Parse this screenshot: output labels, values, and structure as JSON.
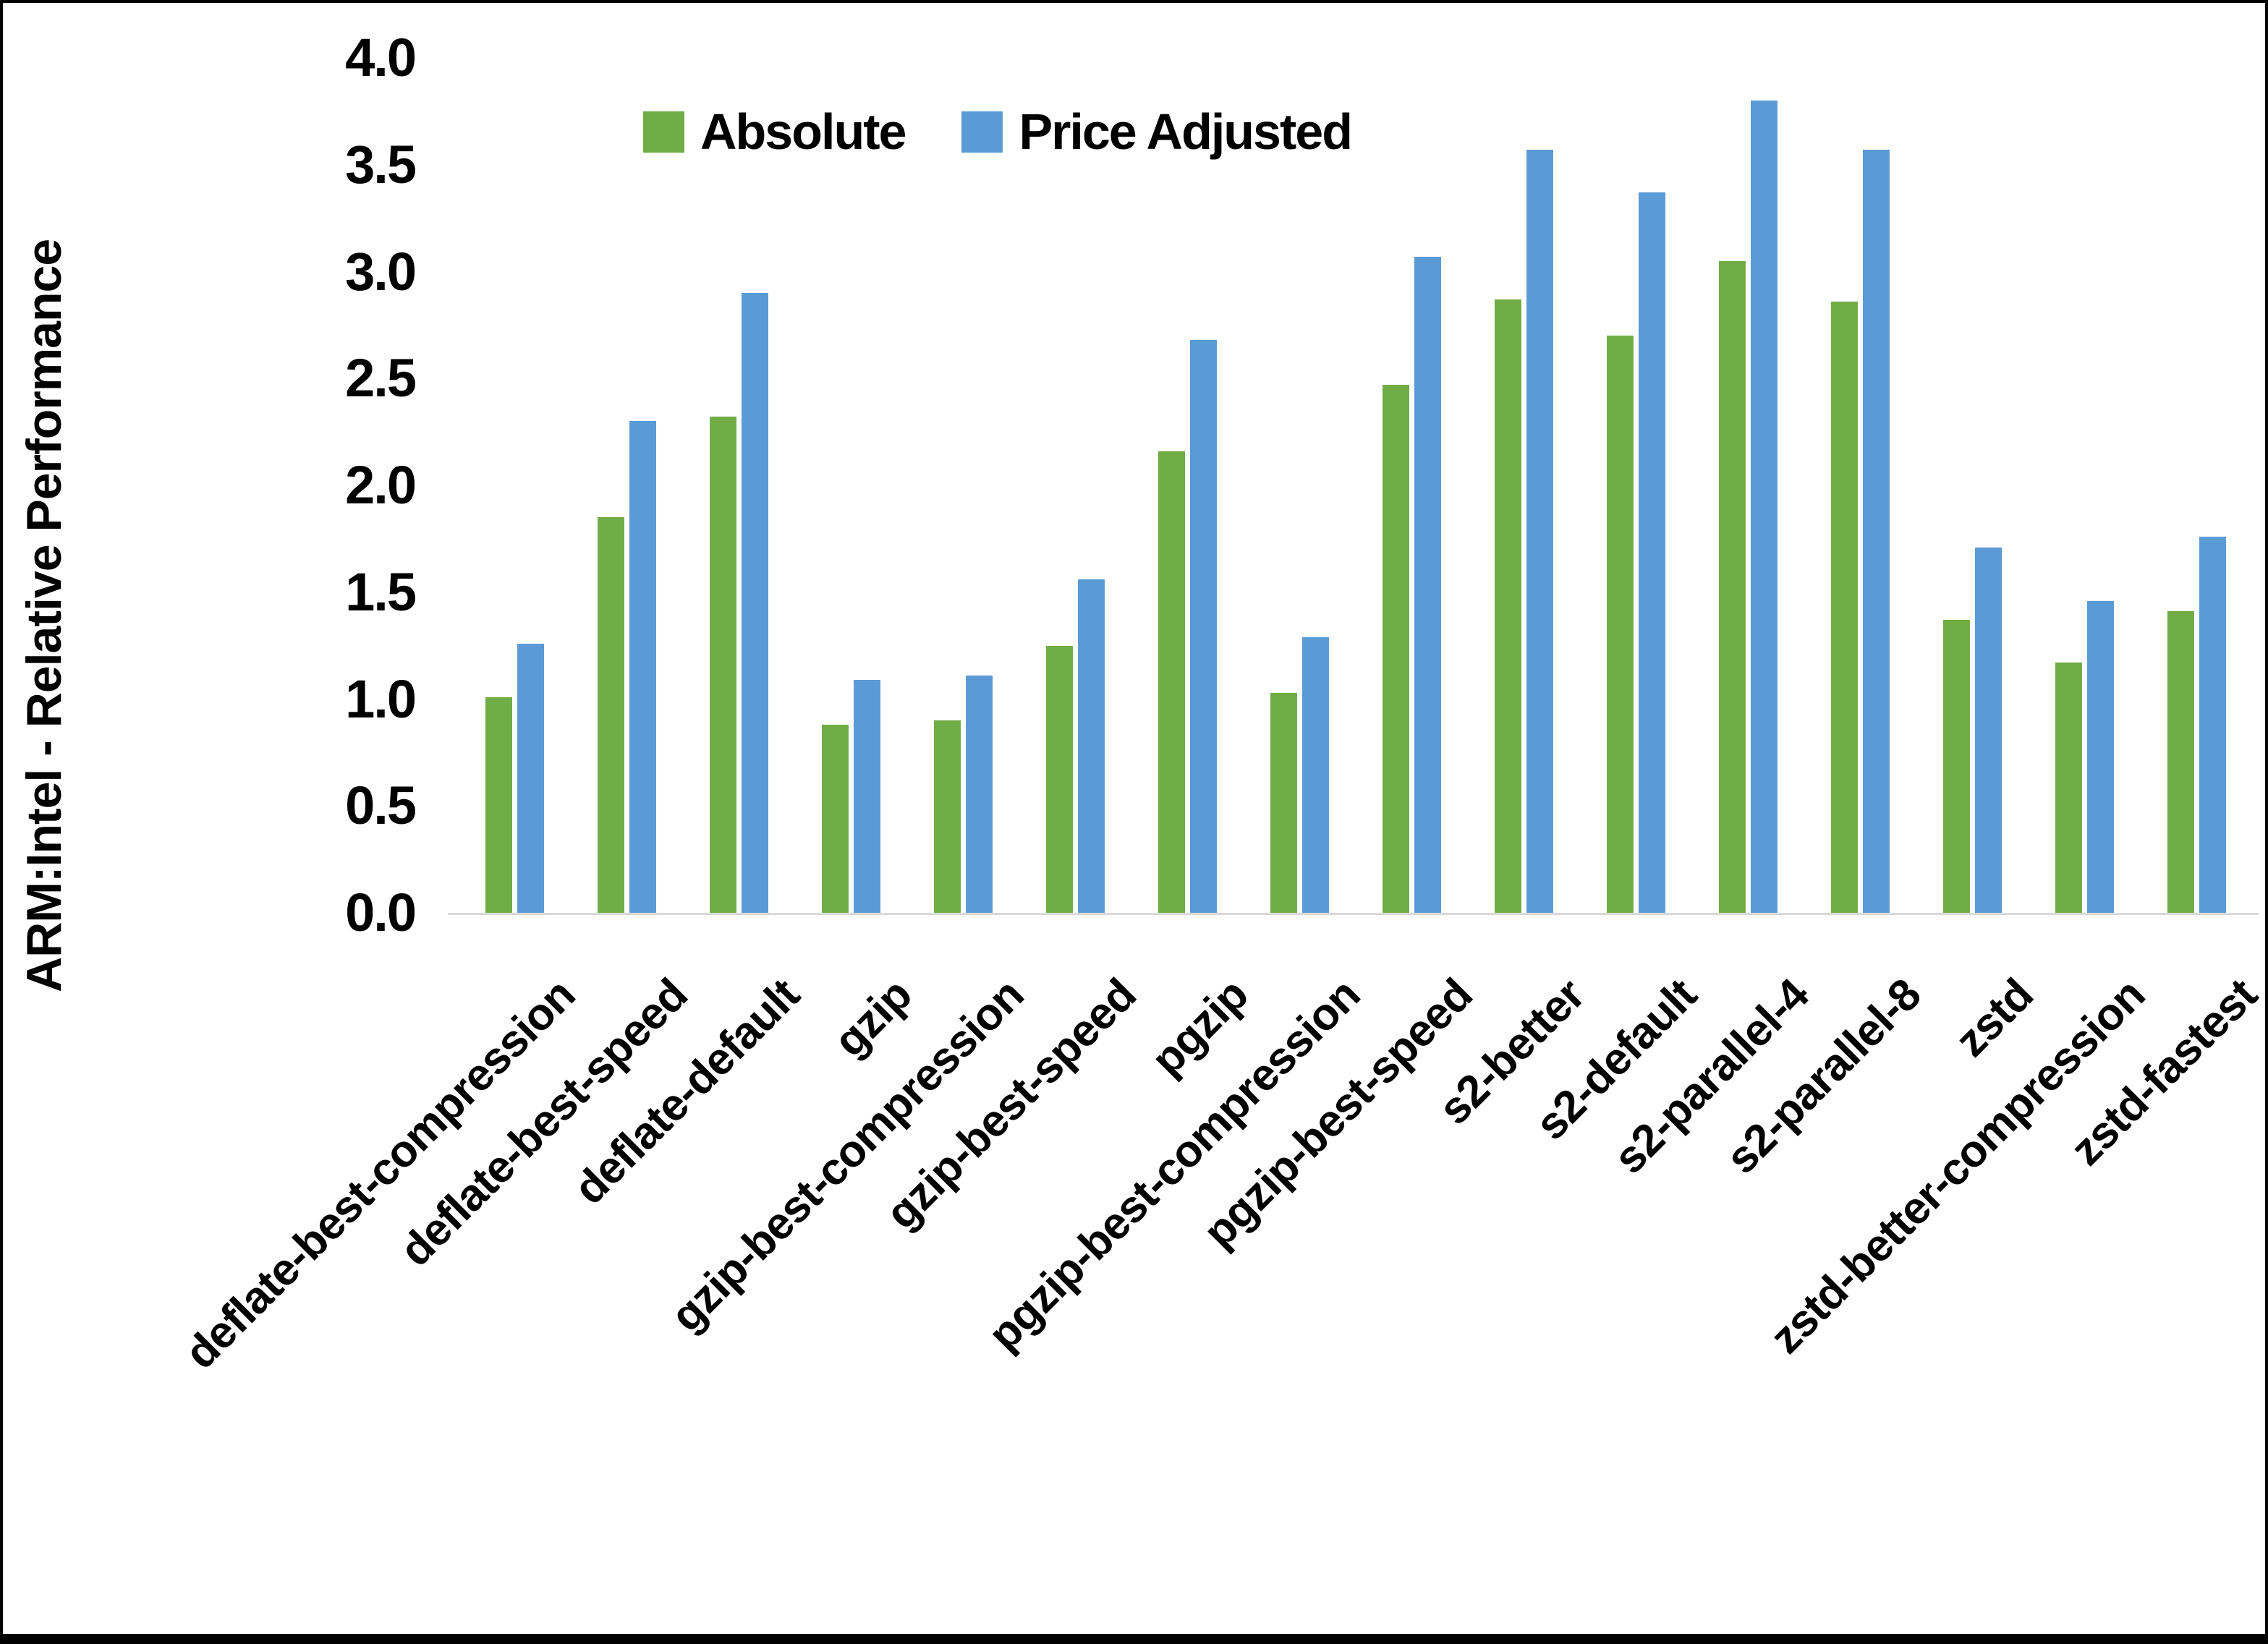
{
  "chart_data": {
    "type": "bar",
    "title": "",
    "xlabel": "",
    "ylabel": "ARM:Intel - Relative Performance",
    "ylim": [
      0.0,
      4.0
    ],
    "ytick_step": 0.5,
    "yticks": [
      "0.0",
      "0.5",
      "1.0",
      "1.5",
      "2.0",
      "2.5",
      "3.0",
      "3.5",
      "4.0"
    ],
    "grid": false,
    "legend_position": "top-center",
    "categories": [
      "deflate-best-compression",
      "deflate-best-speed",
      "deflate-default",
      "gzip",
      "gzip-best-compression",
      "gzip-best-speed",
      "pgzip",
      "pgzip-best-compression",
      "pgzip-best-speed",
      "s2-better",
      "s2-default",
      "s2-parallel-4",
      "s2-parallel-8",
      "zstd",
      "zstd-better-compression",
      "zstd-fastest"
    ],
    "series": [
      {
        "name": "Absolute",
        "color": "#70AD47",
        "values": [
          1.01,
          1.85,
          2.32,
          0.88,
          0.9,
          1.25,
          2.16,
          1.03,
          2.47,
          2.87,
          2.7,
          3.05,
          2.86,
          1.37,
          1.17,
          1.41
        ]
      },
      {
        "name": "Price Adjusted",
        "color": "#5B9BD5",
        "values": [
          1.26,
          2.3,
          2.9,
          1.09,
          1.11,
          1.56,
          2.68,
          1.29,
          3.07,
          3.57,
          3.37,
          3.8,
          3.57,
          1.71,
          1.46,
          1.76
        ]
      }
    ],
    "axis_line_color": "#D9D9D9",
    "text_color": "#000000",
    "background_color": "#FFFFFF",
    "border_color": "#000000"
  }
}
